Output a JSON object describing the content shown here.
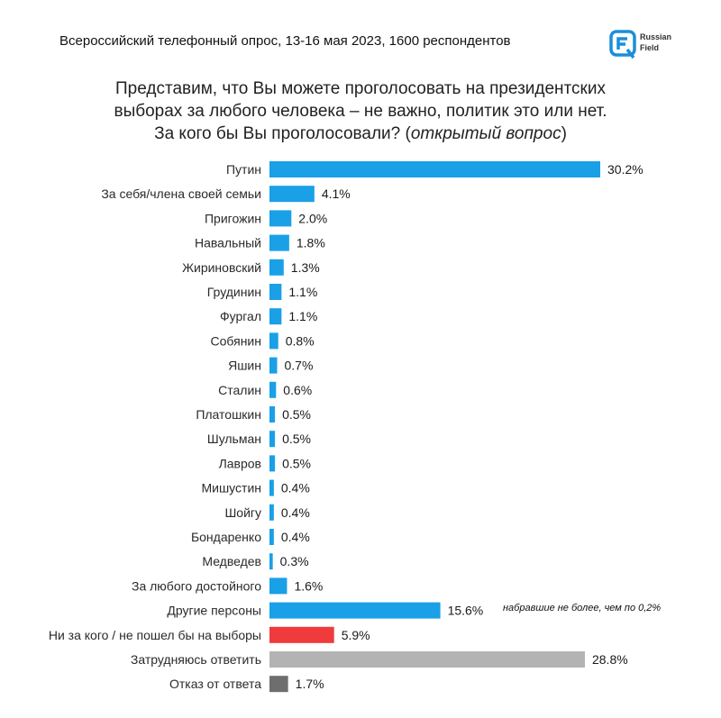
{
  "header": {
    "survey_info": "Всероссийский телефонный опрос, 13-16 мая 2023, 1600 респондентов",
    "logo_line1": "Russian",
    "logo_line2": "Field"
  },
  "question": {
    "line1": "Представим, что Вы можете проголосовать на президентских",
    "line2": "выборах за любого человека – не важно, политик это или нет.",
    "line3_main": "За кого бы Вы проголосовали? (",
    "line3_italic": "открытый вопрос",
    "line3_end": ")"
  },
  "note": "набравшие не более, чем по 0,2%",
  "colors": {
    "primary": "#1aa0e6",
    "against": "#ef3b3b",
    "undecided": "#b3b3b3",
    "refusal": "#6e6e6e",
    "logo": "#1a8fd8"
  },
  "chart_data": {
    "type": "bar",
    "orientation": "horizontal",
    "value_unit": "%",
    "xlim": [
      0,
      30.2
    ],
    "grid": false,
    "categories": [
      "Путин",
      "За себя/члена своей семьи",
      "Пригожин",
      "Навальный",
      "Жириновский",
      "Грудинин",
      "Фургал",
      "Собянин",
      "Яшин",
      "Сталин",
      "Платошкин",
      "Шульман",
      "Лавров",
      "Мишустин",
      "Шойгу",
      "Бондаренко",
      "Медведев",
      "За любого достойного",
      "Другие персоны",
      "Ни за кого / не пошел бы на выборы",
      "Затрудняюсь ответить",
      "Отказ от ответа"
    ],
    "values": [
      30.2,
      4.1,
      2.0,
      1.8,
      1.3,
      1.1,
      1.1,
      0.8,
      0.7,
      0.6,
      0.5,
      0.5,
      0.5,
      0.4,
      0.4,
      0.4,
      0.3,
      1.6,
      15.6,
      5.9,
      28.8,
      1.7
    ],
    "value_labels": [
      "30.2%",
      "4.1%",
      "2.0%",
      "1.8%",
      "1.3%",
      "1.1%",
      "1.1%",
      "0.8%",
      "0.7%",
      "0.6%",
      "0.5%",
      "0.5%",
      "0.5%",
      "0.4%",
      "0.4%",
      "0.4%",
      "0.3%",
      "1.6%",
      "15.6%",
      "5.9%",
      "28.8%",
      "1.7%"
    ],
    "bar_colors": [
      "primary",
      "primary",
      "primary",
      "primary",
      "primary",
      "primary",
      "primary",
      "primary",
      "primary",
      "primary",
      "primary",
      "primary",
      "primary",
      "primary",
      "primary",
      "primary",
      "primary",
      "primary",
      "primary",
      "against",
      "undecided",
      "refusal"
    ]
  }
}
